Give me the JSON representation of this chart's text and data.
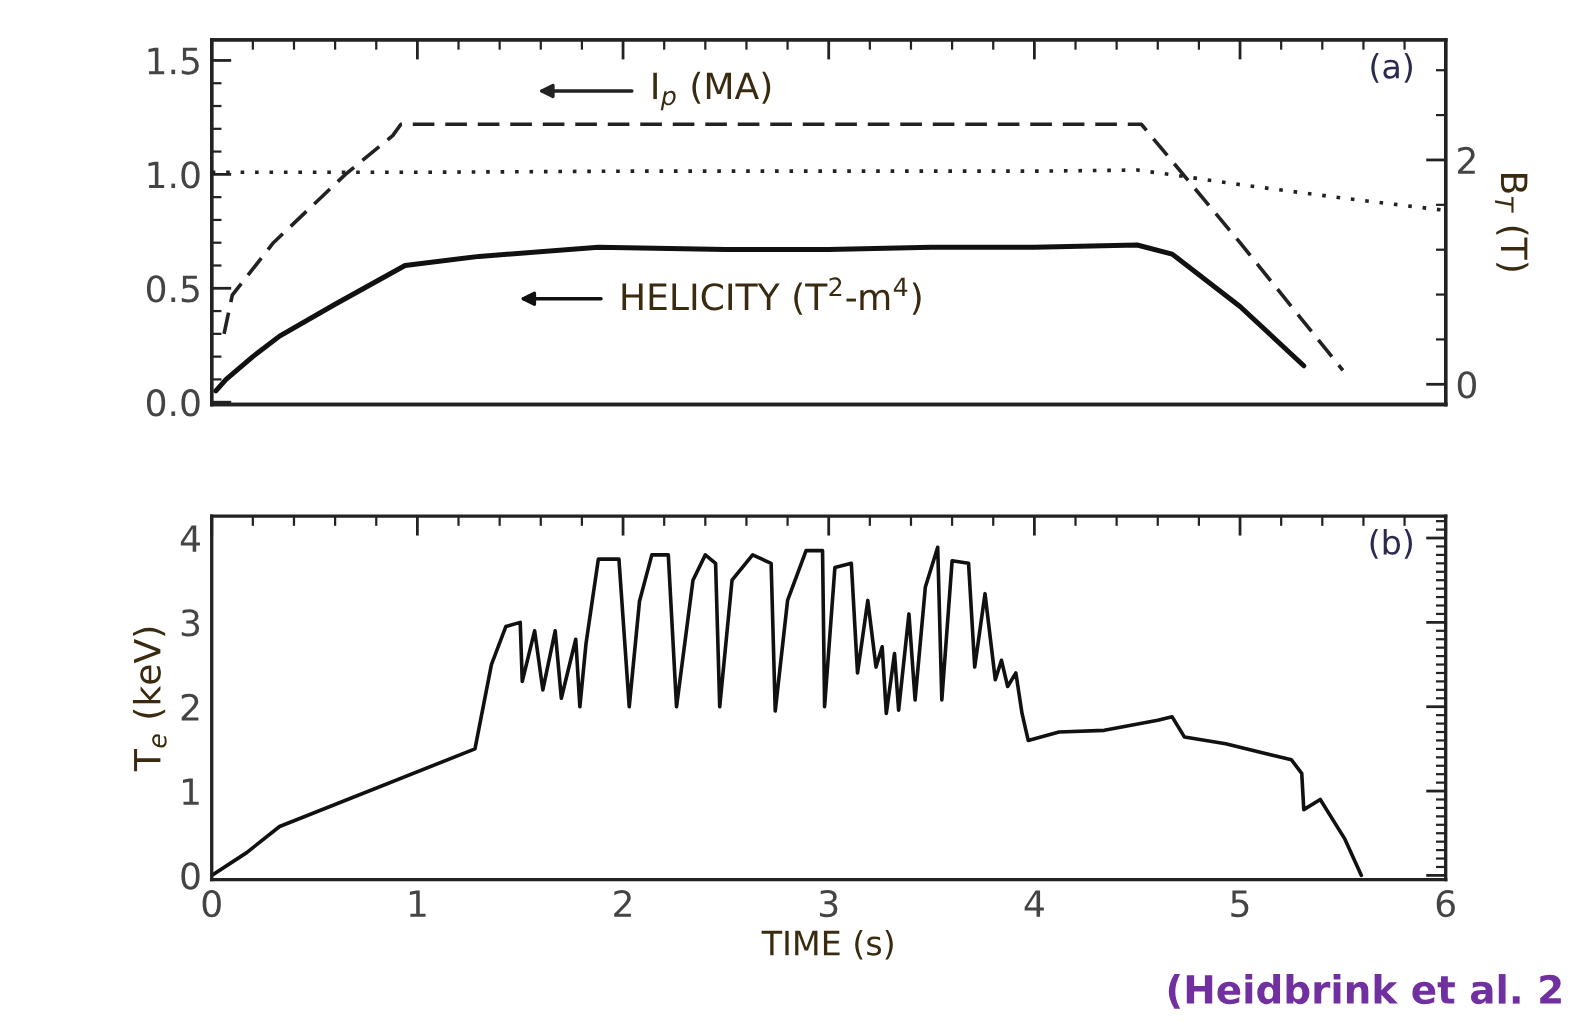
{
  "chart_data": [
    {
      "type": "line",
      "xlim": [
        0,
        6
      ],
      "xticks": [
        0,
        1,
        2,
        3,
        4,
        5,
        6
      ],
      "ylim": [
        -0.01,
        1.59
      ],
      "yticks": [
        {
          "value": 0,
          "label": "0.0"
        },
        {
          "value": 0.5,
          "label": "0.5"
        },
        {
          "value": 1,
          "label": "1.0"
        },
        {
          "value": 1.5,
          "label": "1.5"
        }
      ],
      "y2lim": [
        -0.18,
        3.07
      ],
      "y2ticks": [
        0,
        2
      ],
      "y2label": "B$_{T}$ (T)",
      "tick_labels": "y",
      "grid": false,
      "legend": "top",
      "annotations": [
        "(a)"
      ],
      "series": [
        {
          "name": "I$_{p}$ (MA)",
          "color": "#222222",
          "line_style": "dashed",
          "x": [
            0.06,
            0.1,
            0.3,
            0.65,
            0.88,
            0.92,
            2.0,
            3.0,
            4.0,
            4.52,
            5.0,
            5.5
          ],
          "values": [
            0.3,
            0.47,
            0.7,
            1.0,
            1.17,
            1.22,
            1.22,
            1.22,
            1.22,
            1.22,
            0.7,
            0.14
          ]
        },
        {
          "color": "#222222",
          "line_style": "dotted",
          "axis": "y2",
          "x": [
            0.0,
            1.0,
            2.0,
            3.0,
            4.0,
            4.5,
            4.7,
            5.0,
            5.5,
            6.0
          ],
          "values": [
            1.89,
            1.89,
            1.9,
            1.9,
            1.9,
            1.91,
            1.86,
            1.78,
            1.66,
            1.55
          ]
        },
        {
          "name": "HELICITY (T$^{2}$-m$^{4}$)",
          "color": "#111111",
          "line_style": "solid",
          "x": [
            0.02,
            0.07,
            0.2,
            0.33,
            0.6,
            0.94,
            1.3,
            1.88,
            2.5,
            3.0,
            3.5,
            4.0,
            4.5,
            4.67,
            5.0,
            5.31
          ],
          "values": [
            0.05,
            0.1,
            0.2,
            0.29,
            0.43,
            0.6,
            0.64,
            0.68,
            0.67,
            0.67,
            0.68,
            0.68,
            0.69,
            0.65,
            0.42,
            0.16
          ]
        }
      ]
    },
    {
      "type": "line",
      "xlim": [
        0,
        6
      ],
      "xticks": [
        0,
        1,
        2,
        3,
        4,
        5,
        6
      ],
      "ylim": [
        -0.05,
        4.26
      ],
      "yticks": [
        0,
        1,
        2,
        3,
        4
      ],
      "xlabel": "TIME (s)",
      "ylabel": "T$_{e}$ (keV)",
      "grid": false,
      "annotations": [
        "(b)",
        "(Heidbrink et al. 2"
      ],
      "series": [
        {
          "color": "#111111",
          "line_style": "solid",
          "x": [
            0.0,
            0.17,
            0.33,
            1.28,
            1.36,
            1.43,
            1.5,
            1.51,
            1.57,
            1.61,
            1.67,
            1.7,
            1.77,
            1.79,
            1.82,
            1.88,
            1.98,
            2.03,
            2.08,
            2.14,
            2.22,
            2.26,
            2.34,
            2.4,
            2.45,
            2.47,
            2.53,
            2.63,
            2.72,
            2.74,
            2.8,
            2.89,
            2.97,
            2.98,
            3.03,
            3.11,
            3.14,
            3.19,
            3.23,
            3.26,
            3.28,
            3.32,
            3.34,
            3.39,
            3.42,
            3.47,
            3.53,
            3.55,
            3.6,
            3.68,
            3.71,
            3.76,
            3.81,
            3.84,
            3.87,
            3.91,
            3.94,
            3.97,
            4.12,
            4.34,
            4.6,
            4.67,
            4.73,
            4.93,
            5.25,
            5.3,
            5.31,
            5.39,
            5.51,
            5.59
          ],
          "values": [
            0.0,
            0.27,
            0.58,
            1.5,
            2.5,
            2.95,
            3.0,
            2.3,
            2.9,
            2.2,
            2.9,
            2.1,
            2.8,
            2.0,
            2.75,
            3.75,
            3.75,
            2.0,
            3.25,
            3.8,
            3.8,
            2.0,
            3.5,
            3.8,
            3.7,
            2.0,
            3.5,
            3.8,
            3.7,
            1.95,
            3.26,
            3.85,
            3.85,
            2.0,
            3.65,
            3.7,
            2.4,
            3.26,
            2.47,
            2.71,
            1.92,
            2.63,
            1.96,
            3.1,
            2.08,
            3.42,
            3.89,
            2.08,
            3.73,
            3.7,
            2.47,
            3.34,
            2.32,
            2.55,
            2.24,
            2.4,
            1.92,
            1.6,
            1.7,
            1.72,
            1.84,
            1.88,
            1.64,
            1.56,
            1.37,
            1.21,
            0.78,
            0.9,
            0.43,
            0.0
          ]
        }
      ]
    }
  ]
}
